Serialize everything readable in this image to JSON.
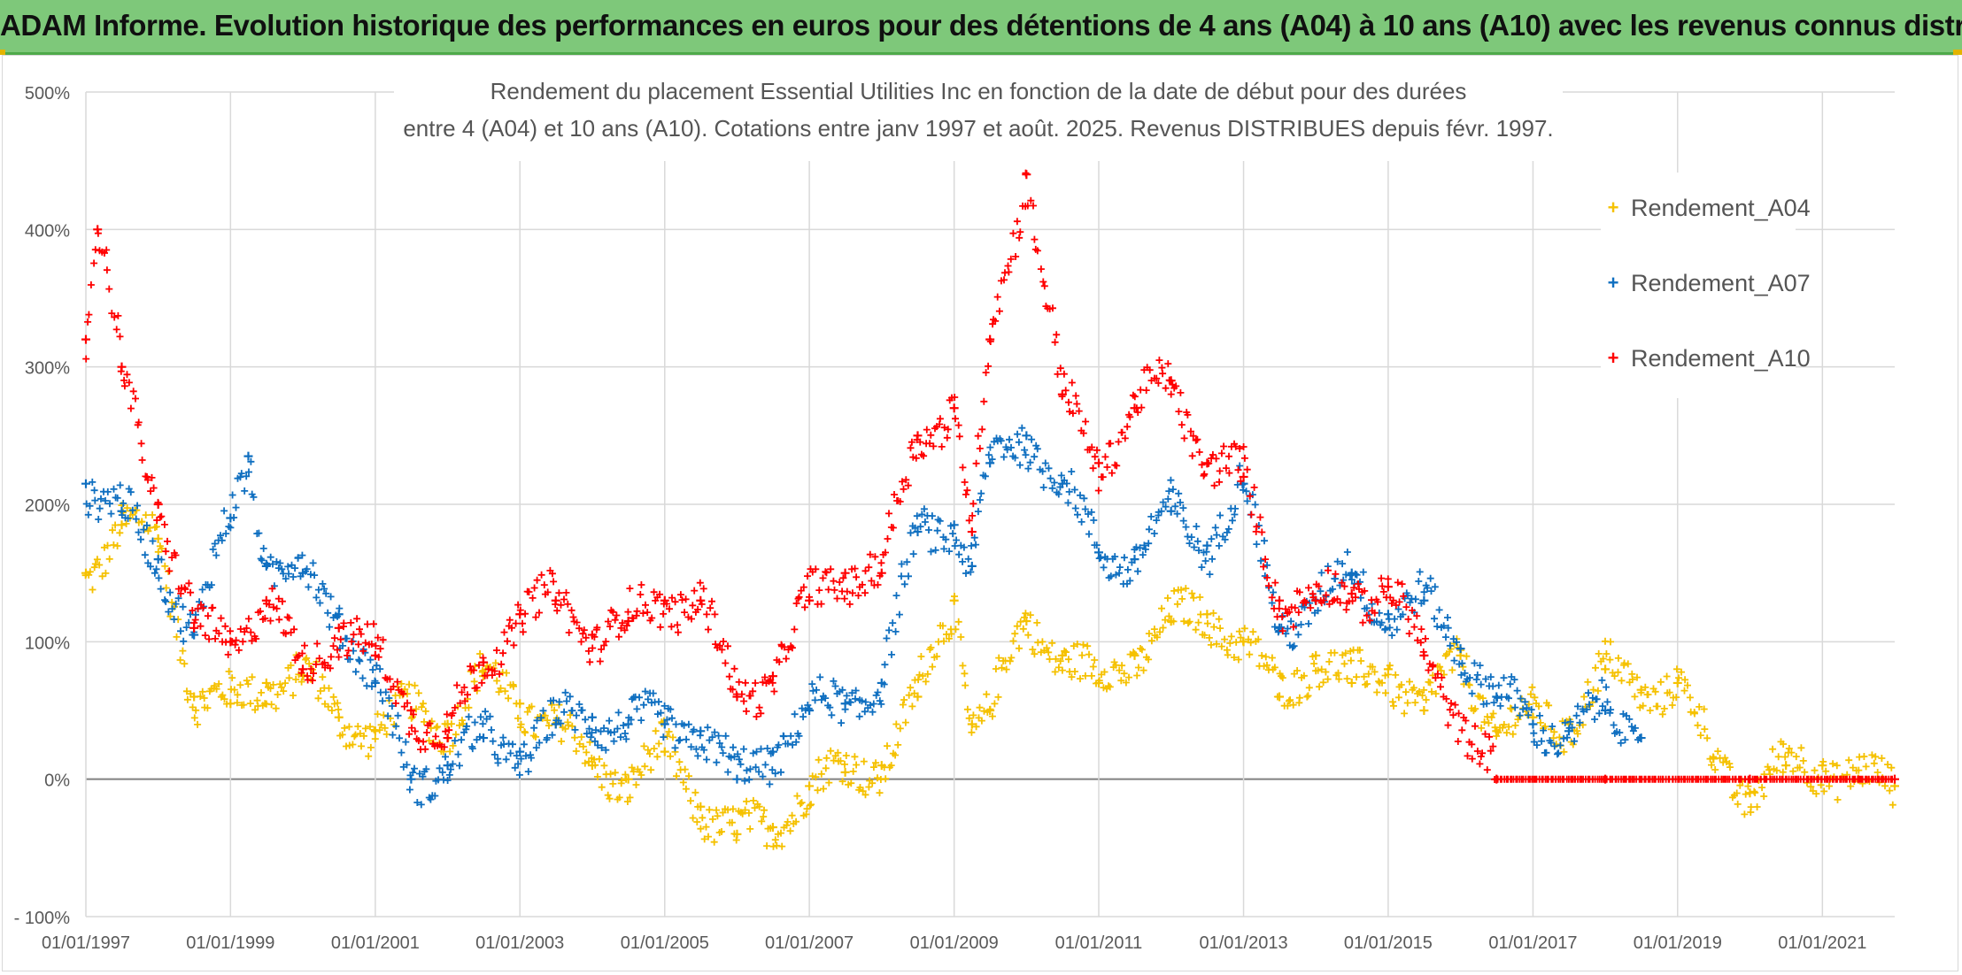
{
  "header": {
    "banner_title": "ADAM Informe. Evolution historique des performances en euros pour des détentions de 4 ans (A04) à 10 ans (A10) avec les revenus connus distribués"
  },
  "chart_data": {
    "type": "scatter",
    "title_line1": "Rendement du placement Essential Utilities Inc en fonction de la date de début pour des durées",
    "title_line2": "entre 4 (A04) et 10 ans (A10). Cotations entre janv 1997 et août. 2025. Revenus DISTRIBUES depuis févr. 1997.",
    "xlabel": "",
    "ylabel": "",
    "ylim": [
      -100,
      500
    ],
    "xlim": [
      "01/01/1997",
      "01/01/2022"
    ],
    "y_ticks": [
      -100,
      0,
      100,
      200,
      300,
      400,
      500
    ],
    "y_tick_labels": [
      "- 100%",
      "0%",
      "100%",
      "200%",
      "300%",
      "400%",
      "500%"
    ],
    "x_tick_labels": [
      "01/01/1997",
      "01/01/1999",
      "01/01/2001",
      "01/01/2003",
      "01/01/2005",
      "01/01/2007",
      "01/01/2009",
      "01/01/2011",
      "01/01/2013",
      "01/01/2015",
      "01/01/2017",
      "01/01/2019",
      "01/01/2021"
    ],
    "grid": true,
    "legend_position": "right",
    "marker": "+",
    "series": [
      {
        "name": "Rendement_A04",
        "color": "#f5c100",
        "points": [
          [
            "01/01/1997",
            150
          ],
          [
            "01/07/1997",
            185
          ],
          [
            "01/01/1998",
            175
          ],
          [
            "01/07/1998",
            60
          ],
          [
            "01/01/1999",
            55
          ],
          [
            "01/07/1999",
            70
          ],
          [
            "01/01/2000",
            75
          ],
          [
            "01/07/2000",
            45
          ],
          [
            "01/01/2001",
            35
          ],
          [
            "01/07/2001",
            50
          ],
          [
            "01/01/2002",
            40
          ],
          [
            "01/07/2002",
            75
          ],
          [
            "01/01/2003",
            55
          ],
          [
            "01/07/2003",
            40
          ],
          [
            "01/01/2004",
            10
          ],
          [
            "01/07/2004",
            0
          ],
          [
            "01/01/2005",
            20
          ],
          [
            "01/07/2005",
            -20
          ],
          [
            "01/01/2006",
            -40
          ],
          [
            "01/07/2006",
            -35
          ],
          [
            "01/01/2007",
            -5
          ],
          [
            "01/07/2007",
            5
          ],
          [
            "01/01/2008",
            10
          ],
          [
            "01/07/2008",
            60
          ],
          [
            "01/01/2009",
            130
          ],
          [
            "01/04/2009",
            40
          ],
          [
            "01/07/2009",
            50
          ],
          [
            "01/01/2010",
            115
          ],
          [
            "01/07/2010",
            90
          ],
          [
            "01/01/2011",
            70
          ],
          [
            "01/07/2011",
            90
          ],
          [
            "01/01/2012",
            115
          ],
          [
            "01/07/2012",
            120
          ],
          [
            "01/01/2013",
            100
          ],
          [
            "01/07/2013",
            60
          ],
          [
            "01/01/2014",
            90
          ],
          [
            "01/07/2014",
            70
          ],
          [
            "01/01/2015",
            80
          ],
          [
            "01/07/2015",
            50
          ],
          [
            "01/01/2016",
            90
          ],
          [
            "01/07/2016",
            35
          ],
          [
            "01/01/2017",
            45
          ],
          [
            "01/07/2017",
            40
          ],
          [
            "01/01/2018",
            80
          ],
          [
            "01/07/2018",
            65
          ],
          [
            "01/01/2019",
            70
          ],
          [
            "01/07/2019",
            15
          ],
          [
            "01/01/2020",
            -10
          ],
          [
            "01/07/2020",
            10
          ],
          [
            "01/01/2021",
            10
          ],
          [
            "01/07/2021",
            0
          ],
          [
            "01/01/2022",
            -5
          ]
        ]
      },
      {
        "name": "Rendement_A07",
        "color": "#0f6fc0",
        "points": [
          [
            "01/01/1997",
            215
          ],
          [
            "01/07/1997",
            195
          ],
          [
            "01/01/1998",
            160
          ],
          [
            "01/07/1998",
            105
          ],
          [
            "01/01/1999",
            190
          ],
          [
            "01/04/1999",
            235
          ],
          [
            "01/07/1999",
            155
          ],
          [
            "01/01/2000",
            150
          ],
          [
            "01/07/2000",
            120
          ],
          [
            "01/01/2001",
            70
          ],
          [
            "01/07/2001",
            0
          ],
          [
            "01/01/2002",
            10
          ],
          [
            "01/07/2002",
            30
          ],
          [
            "01/01/2003",
            20
          ],
          [
            "01/07/2003",
            40
          ],
          [
            "01/01/2004",
            45
          ],
          [
            "01/07/2004",
            40
          ],
          [
            "01/01/2005",
            40
          ],
          [
            "01/07/2005",
            35
          ],
          [
            "01/01/2006",
            0
          ],
          [
            "01/07/2006",
            20
          ],
          [
            "01/01/2007",
            50
          ],
          [
            "01/07/2007",
            55
          ],
          [
            "01/01/2008",
            70
          ],
          [
            "01/07/2008",
            180
          ],
          [
            "01/01/2009",
            185
          ],
          [
            "01/04/2009",
            155
          ],
          [
            "01/07/2009",
            230
          ],
          [
            "01/01/2010",
            250
          ],
          [
            "01/07/2010",
            215
          ],
          [
            "01/01/2011",
            165
          ],
          [
            "01/07/2011",
            160
          ],
          [
            "01/01/2012",
            195
          ],
          [
            "01/07/2012",
            170
          ],
          [
            "01/01/2013",
            215
          ],
          [
            "01/07/2013",
            110
          ],
          [
            "01/01/2014",
            130
          ],
          [
            "01/07/2014",
            150
          ],
          [
            "01/01/2015",
            120
          ],
          [
            "01/07/2015",
            130
          ],
          [
            "01/01/2016",
            95
          ],
          [
            "01/07/2016",
            60
          ],
          [
            "01/01/2017",
            40
          ],
          [
            "01/07/2017",
            35
          ],
          [
            "01/01/2018",
            50
          ],
          [
            "01/07/2018",
            30
          ]
        ]
      },
      {
        "name": "Rendement_A10",
        "color": "#ff0000",
        "points": [
          [
            "01/01/1997",
            320
          ],
          [
            "01/03/1997",
            400
          ],
          [
            "01/07/1997",
            300
          ],
          [
            "01/01/1998",
            200
          ],
          [
            "01/07/1998",
            110
          ],
          [
            "01/01/1999",
            100
          ],
          [
            "01/07/1999",
            130
          ],
          [
            "01/01/2000",
            80
          ],
          [
            "01/07/2000",
            110
          ],
          [
            "01/01/2001",
            90
          ],
          [
            "01/07/2001",
            50
          ],
          [
            "01/01/2002",
            30
          ],
          [
            "01/07/2002",
            85
          ],
          [
            "01/01/2003",
            120
          ],
          [
            "01/07/2003",
            130
          ],
          [
            "01/01/2004",
            105
          ],
          [
            "01/07/2004",
            115
          ],
          [
            "01/01/2005",
            130
          ],
          [
            "01/07/2005",
            130
          ],
          [
            "01/01/2006",
            60
          ],
          [
            "01/07/2006",
            75
          ],
          [
            "01/01/2007",
            130
          ],
          [
            "01/07/2007",
            150
          ],
          [
            "01/01/2008",
            150
          ],
          [
            "01/07/2008",
            250
          ],
          [
            "01/01/2009",
            270
          ],
          [
            "01/04/2009",
            180
          ],
          [
            "01/07/2009",
            320
          ],
          [
            "01/01/2010",
            440
          ],
          [
            "01/07/2010",
            280
          ],
          [
            "01/01/2011",
            230
          ],
          [
            "01/07/2011",
            270
          ],
          [
            "01/01/2012",
            290
          ],
          [
            "01/07/2012",
            230
          ],
          [
            "01/01/2013",
            220
          ],
          [
            "01/07/2013",
            130
          ],
          [
            "01/01/2014",
            130
          ],
          [
            "01/07/2014",
            135
          ],
          [
            "01/01/2015",
            140
          ],
          [
            "01/07/2015",
            90
          ],
          [
            "01/07/2016",
            0
          ],
          [
            "01/01/2018",
            0
          ],
          [
            "01/01/2020",
            0
          ],
          [
            "01/01/2022",
            0
          ]
        ]
      }
    ]
  }
}
